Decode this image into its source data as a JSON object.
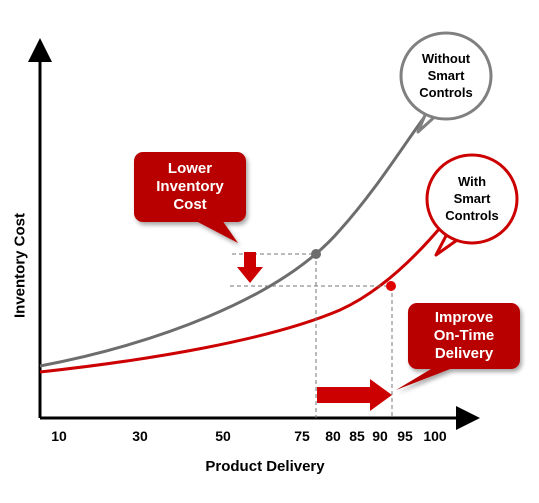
{
  "chart_data": {
    "type": "line",
    "xlabel": "Product Delivery",
    "ylabel": "Inventory Cost",
    "x_tick_labels": [
      "10",
      "30",
      "50",
      "75",
      "80",
      "85",
      "90",
      "95",
      "100"
    ],
    "series": [
      {
        "name": "Without Smart Controls",
        "color": "#6d6d6d"
      },
      {
        "name": "With Smart Controls",
        "color": "#cc0000"
      }
    ]
  },
  "annotations": {
    "lower_cost": [
      "Lower",
      "Inventory",
      "Cost"
    ],
    "improve_delivery": [
      "Improve",
      "On-Time",
      "Delivery"
    ]
  },
  "callouts": {
    "without": [
      "Without",
      "Smart",
      "Controls"
    ],
    "with": [
      "With",
      "Smart",
      "Controls"
    ]
  },
  "colors": {
    "accent": "#cc0000",
    "accent_dark": "#a80000",
    "gray_curve": "#6d6d6d"
  }
}
